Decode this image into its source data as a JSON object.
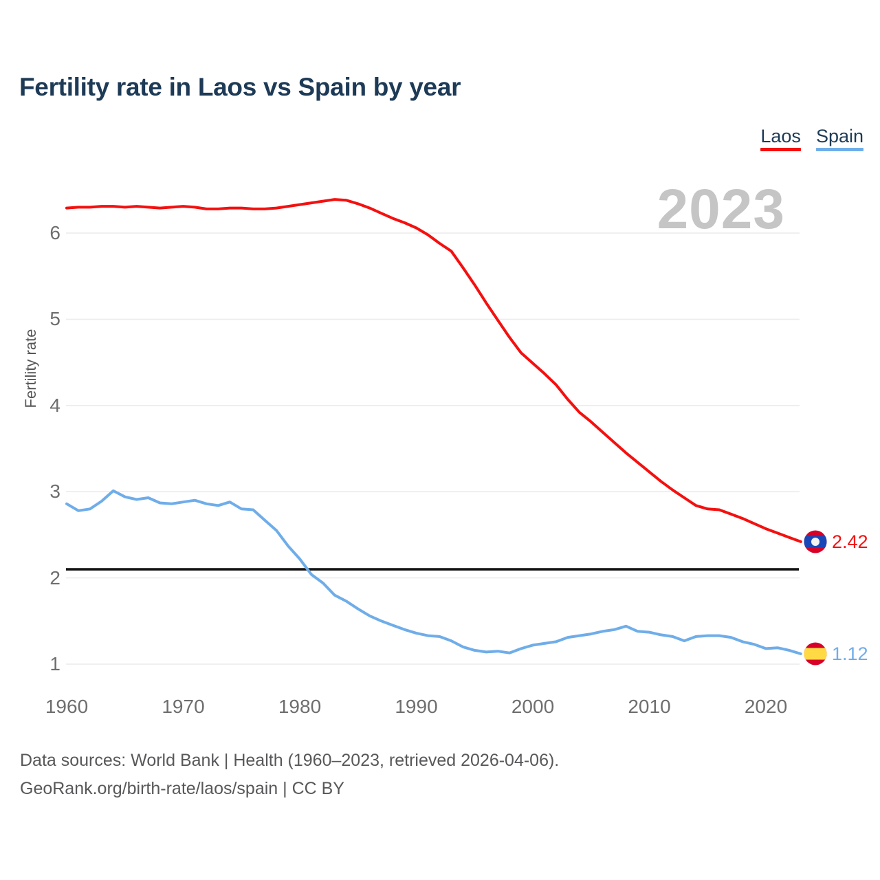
{
  "title": "Fertility rate in Laos vs Spain by year",
  "watermark": "2023",
  "legend": [
    {
      "label": "Laos",
      "color": "#f4100f"
    },
    {
      "label": "Spain",
      "color": "#6fade9"
    }
  ],
  "footer": {
    "line1": "Data sources: World Bank | Health (1960–2023, retrieved 2026-04-06).",
    "line2": "GeoRank.org/birth-rate/laos/spain | CC BY"
  },
  "chart_data": {
    "type": "line",
    "title": "Fertility rate in Laos vs Spain by year",
    "xlabel": "",
    "ylabel": "Fertility rate",
    "xlim": [
      1960,
      2023
    ],
    "ylim": [
      0.87,
      6.55
    ],
    "x_ticks": [
      1960,
      1970,
      1980,
      1990,
      2000,
      2010,
      2020
    ],
    "y_ticks_top_to_bottom": [
      6,
      5,
      4,
      3,
      2,
      1
    ],
    "grid": "horizontal",
    "legend_position": "top-right",
    "reference_line": {
      "value": 2.1,
      "color": "#111111"
    },
    "years": [
      1960,
      1961,
      1962,
      1963,
      1964,
      1965,
      1966,
      1967,
      1968,
      1969,
      1970,
      1971,
      1972,
      1973,
      1974,
      1975,
      1976,
      1977,
      1978,
      1979,
      1980,
      1981,
      1982,
      1983,
      1984,
      1985,
      1986,
      1987,
      1988,
      1989,
      1990,
      1991,
      1992,
      1993,
      1994,
      1995,
      1996,
      1997,
      1998,
      1999,
      2000,
      2001,
      2002,
      2003,
      2004,
      2005,
      2006,
      2007,
      2008,
      2009,
      2010,
      2011,
      2012,
      2013,
      2014,
      2015,
      2016,
      2017,
      2018,
      2019,
      2020,
      2021,
      2022,
      2023
    ],
    "series": [
      {
        "name": "Laos",
        "color": "#f4100f",
        "end_label": "2.42",
        "flag": "laos-flag-icon",
        "values": [
          6.29,
          6.3,
          6.3,
          6.31,
          6.31,
          6.3,
          6.31,
          6.3,
          6.29,
          6.3,
          6.31,
          6.3,
          6.28,
          6.28,
          6.29,
          6.29,
          6.28,
          6.28,
          6.29,
          6.31,
          6.33,
          6.35,
          6.37,
          6.39,
          6.38,
          6.34,
          6.29,
          6.23,
          6.17,
          6.12,
          6.06,
          5.98,
          5.88,
          5.79,
          5.6,
          5.4,
          5.19,
          4.99,
          4.79,
          4.61,
          4.49,
          4.37,
          4.24,
          4.07,
          3.92,
          3.81,
          3.69,
          3.57,
          3.45,
          3.34,
          3.23,
          3.12,
          3.02,
          2.93,
          2.84,
          2.8,
          2.79,
          2.74,
          2.69,
          2.63,
          2.57,
          2.52,
          2.47,
          2.42
        ]
      },
      {
        "name": "Spain",
        "color": "#6fade9",
        "end_label": "1.12",
        "flag": "spain-flag-icon",
        "values": [
          2.86,
          2.78,
          2.8,
          2.89,
          3.01,
          2.94,
          2.91,
          2.93,
          2.87,
          2.86,
          2.88,
          2.9,
          2.86,
          2.84,
          2.88,
          2.8,
          2.79,
          2.67,
          2.55,
          2.37,
          2.22,
          2.04,
          1.94,
          1.8,
          1.73,
          1.64,
          1.56,
          1.5,
          1.45,
          1.4,
          1.36,
          1.33,
          1.32,
          1.27,
          1.2,
          1.16,
          1.14,
          1.15,
          1.13,
          1.18,
          1.22,
          1.24,
          1.26,
          1.31,
          1.33,
          1.35,
          1.38,
          1.4,
          1.44,
          1.38,
          1.37,
          1.34,
          1.32,
          1.27,
          1.32,
          1.33,
          1.33,
          1.31,
          1.26,
          1.23,
          1.18,
          1.19,
          1.16,
          1.12
        ]
      }
    ]
  }
}
